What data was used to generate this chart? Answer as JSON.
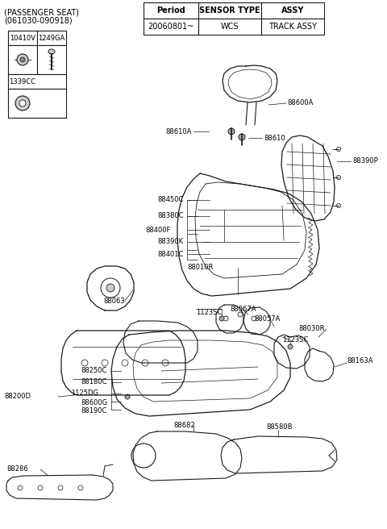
{
  "bg_color": "#ffffff",
  "line_color": "#1a1a1a",
  "text_color": "#000000",
  "header_text1": "(PASSENGER SEAT)",
  "header_text2": "(061030-090918)",
  "table_header": [
    "Period",
    "SENSOR TYPE",
    "ASSY"
  ],
  "table_row": [
    "20060801~",
    "WCS",
    "TRACK ASSY"
  ],
  "parts_table_col1": [
    "10410V",
    "1339CC"
  ],
  "parts_table_col2": [
    "1249GA",
    ""
  ],
  "font_size_header": 7,
  "font_size_label": 6,
  "font_size_table": 7
}
